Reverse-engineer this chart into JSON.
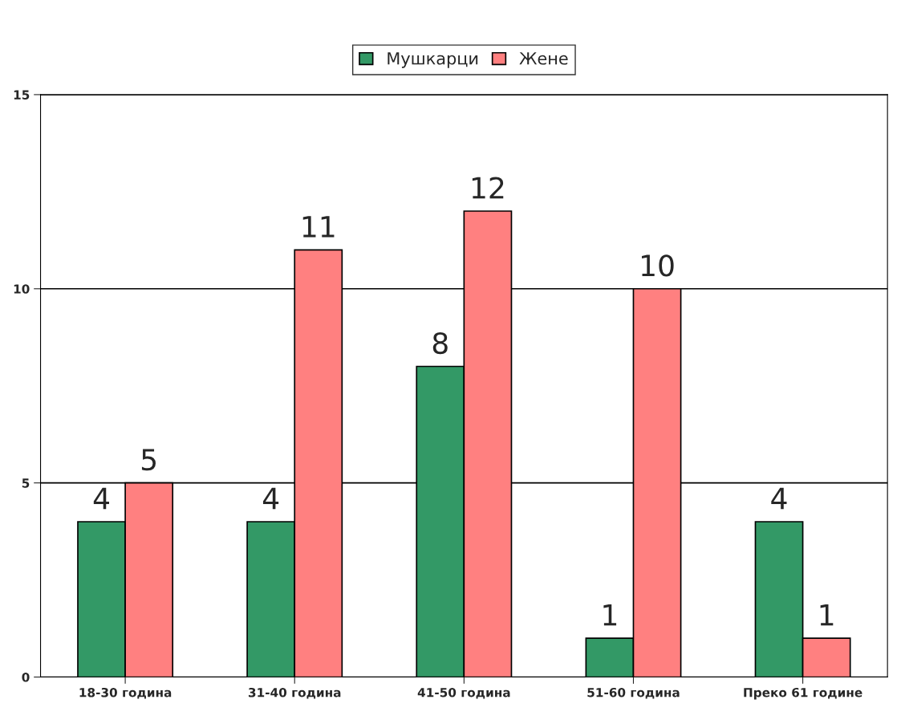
{
  "chart_data": {
    "type": "bar",
    "categories": [
      "18-30 година",
      "31-40 година",
      "41-50 година",
      "51-60 година",
      "Преко 61 године"
    ],
    "series": [
      {
        "name": "Мушкарци",
        "color": "#339966",
        "values": [
          4,
          4,
          8,
          1,
          4
        ]
      },
      {
        "name": "Жене",
        "color": "#ff8080",
        "values": [
          5,
          11,
          12,
          10,
          1
        ]
      }
    ],
    "ylim": [
      0,
      15
    ],
    "yticks": [
      0,
      5,
      10,
      15
    ],
    "grid": "y",
    "legend": "top",
    "data_labels": true
  }
}
